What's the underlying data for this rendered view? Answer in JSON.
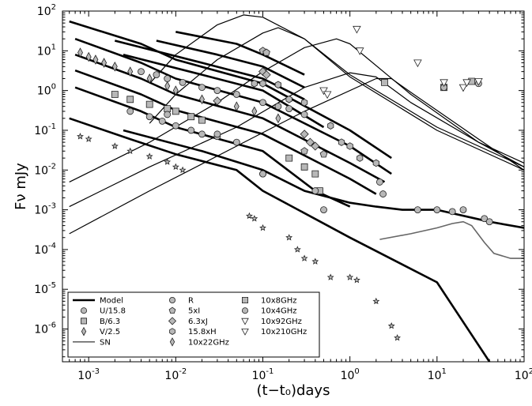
{
  "chart_data": {
    "type": "scatter",
    "title": "",
    "xlabel": "(t−t₀)days",
    "ylabel": "Fν mJy",
    "xscale": "log",
    "yscale": "log",
    "xlim": [
      0.0005,
      100
    ],
    "ylim": [
      1.5e-07,
      100
    ],
    "grid": false,
    "legend_position": "lower-left",
    "x_ticks": [
      {
        "value": 0.001,
        "base": "10",
        "exp": "-3"
      },
      {
        "value": 0.01,
        "base": "10",
        "exp": "-2"
      },
      {
        "value": 0.1,
        "base": "10",
        "exp": "-1"
      },
      {
        "value": 1,
        "base": "10",
        "exp": "0"
      },
      {
        "value": 10,
        "base": "10",
        "exp": "1"
      },
      {
        "value": 100,
        "base": "10",
        "exp": "2"
      }
    ],
    "y_ticks": [
      {
        "value": 1e-06,
        "base": "10",
        "exp": "-6"
      },
      {
        "value": 1e-05,
        "base": "10",
        "exp": "-5"
      },
      {
        "value": 0.0001,
        "base": "10",
        "exp": "-4"
      },
      {
        "value": 0.001,
        "base": "10",
        "exp": "-3"
      },
      {
        "value": 0.01,
        "base": "10",
        "exp": "-2"
      },
      {
        "value": 0.1,
        "base": "10",
        "exp": "-1"
      },
      {
        "value": 1,
        "base": "10",
        "exp": "0"
      },
      {
        "value": 10,
        "base": "10",
        "exp": "1"
      },
      {
        "value": 100,
        "base": "10",
        "exp": "2"
      }
    ],
    "legend": [
      {
        "label": "Model",
        "marker": "line-thick"
      },
      {
        "label": "U/15.8",
        "marker": "circle"
      },
      {
        "label": "B/6.3",
        "marker": "square"
      },
      {
        "label": "V/2.5",
        "marker": "thin-diamond"
      },
      {
        "label": "SN",
        "marker": "line-gray"
      },
      {
        "label": "R",
        "marker": "circle"
      },
      {
        "label": "5xI",
        "marker": "pentagon"
      },
      {
        "label": "6.3xJ",
        "marker": "diamond"
      },
      {
        "label": "15.8xH",
        "marker": "hexagon"
      },
      {
        "label": "10x22GHz",
        "marker": "thin-diamond"
      },
      {
        "label": "10x8GHz",
        "marker": "square"
      },
      {
        "label": "10x4GHz",
        "marker": "circle"
      },
      {
        "label": "10x92GHz",
        "marker": "triangle-down"
      },
      {
        "label": "10x210GHz",
        "marker": "triangle-down"
      }
    ],
    "model_curves_thick": [
      {
        "points": [
          [
            0.0006,
            55
          ],
          [
            0.004,
            15
          ],
          [
            0.01,
            6
          ],
          [
            0.1,
            1.5
          ],
          [
            1,
            0.1
          ],
          [
            3,
            0.02
          ]
        ]
      },
      {
        "points": [
          [
            0.0007,
            20
          ],
          [
            0.004,
            5
          ],
          [
            0.01,
            2
          ],
          [
            0.1,
            0.5
          ],
          [
            1,
            0.04
          ],
          [
            3,
            0.008
          ]
        ]
      },
      {
        "points": [
          [
            0.0007,
            8
          ],
          [
            0.004,
            2
          ],
          [
            0.01,
            0.8
          ],
          [
            0.1,
            0.2
          ],
          [
            1,
            0.015
          ],
          [
            2.5,
            0.005
          ]
        ]
      },
      {
        "points": [
          [
            0.0007,
            3.2
          ],
          [
            0.004,
            0.8
          ],
          [
            0.01,
            0.32
          ],
          [
            0.1,
            0.08
          ],
          [
            1,
            0.006
          ],
          [
            2,
            0.0025
          ]
        ]
      },
      {
        "points": [
          [
            0.0007,
            1.2
          ],
          [
            0.004,
            0.3
          ],
          [
            0.01,
            0.12
          ],
          [
            0.1,
            0.03
          ],
          [
            0.4,
            0.003
          ],
          [
            1,
            0.0012
          ]
        ]
      },
      {
        "points": [
          [
            0.0006,
            0.2
          ],
          [
            0.003,
            0.06
          ],
          [
            0.01,
            0.025
          ],
          [
            0.05,
            0.01
          ],
          [
            0.1,
            0.003
          ],
          [
            1,
            0.0002
          ],
          [
            10,
            1.5e-05
          ],
          [
            40,
            1.5e-07
          ]
        ]
      },
      {
        "points": [
          [
            0.0025,
            8
          ],
          [
            0.02,
            2.5
          ],
          [
            0.1,
            1
          ],
          [
            0.5,
            0.12
          ]
        ]
      },
      {
        "points": [
          [
            0.002,
            18
          ],
          [
            0.02,
            5
          ],
          [
            0.1,
            2
          ],
          [
            0.3,
            0.6
          ]
        ]
      },
      {
        "points": [
          [
            0.006,
            18
          ],
          [
            0.03,
            8
          ],
          [
            0.1,
            4
          ],
          [
            0.3,
            1.2
          ]
        ]
      },
      {
        "points": [
          [
            0.01,
            30
          ],
          [
            0.05,
            15
          ],
          [
            0.1,
            8
          ],
          [
            0.3,
            2.5
          ]
        ]
      },
      {
        "points": [
          [
            0.0025,
            0.1
          ],
          [
            0.02,
            0.03
          ],
          [
            0.1,
            0.01
          ],
          [
            0.3,
            0.003
          ],
          [
            1,
            0.0015
          ],
          [
            2,
            0.0012
          ],
          [
            4,
            0.001
          ],
          [
            10,
            0.001
          ],
          [
            40,
            0.0005
          ],
          [
            100,
            0.00035
          ]
        ]
      }
    ],
    "model_curves_thin": [
      {
        "points": [
          [
            0.005,
            1.5
          ],
          [
            0.01,
            8
          ],
          [
            0.03,
            45
          ],
          [
            0.06,
            80
          ],
          [
            0.1,
            70
          ],
          [
            0.3,
            20
          ],
          [
            1,
            2.5
          ],
          [
            10,
            0.12
          ],
          [
            100,
            0.012
          ]
        ]
      },
      {
        "points": [
          [
            0.005,
            0.15
          ],
          [
            0.01,
            0.8
          ],
          [
            0.03,
            6
          ],
          [
            0.1,
            28
          ],
          [
            0.15,
            38
          ],
          [
            0.3,
            20
          ],
          [
            1,
            2.2
          ],
          [
            10,
            0.1
          ],
          [
            100,
            0.01
          ]
        ]
      },
      {
        "points": [
          [
            0.0006,
            0.005
          ],
          [
            0.005,
            0.05
          ],
          [
            0.03,
            0.5
          ],
          [
            0.1,
            3
          ],
          [
            0.3,
            12
          ],
          [
            0.7,
            20
          ],
          [
            1,
            15
          ],
          [
            5,
            0.8
          ],
          [
            30,
            0.05
          ],
          [
            100,
            0.015
          ]
        ]
      },
      {
        "points": [
          [
            0.0006,
            0.0012
          ],
          [
            0.005,
            0.012
          ],
          [
            0.05,
            0.12
          ],
          [
            0.3,
            1.2
          ],
          [
            1,
            2.8
          ],
          [
            2,
            2.2
          ],
          [
            5,
            0.5
          ],
          [
            30,
            0.05
          ],
          [
            100,
            0.012
          ]
        ]
      },
      {
        "points": [
          [
            0.0006,
            0.00025
          ],
          [
            0.005,
            0.003
          ],
          [
            0.05,
            0.04
          ],
          [
            0.3,
            0.3
          ],
          [
            2,
            2
          ],
          [
            3,
            2
          ],
          [
            5,
            0.9
          ],
          [
            30,
            0.06
          ],
          [
            100,
            0.01
          ]
        ]
      }
    ],
    "sn_curve": {
      "points": [
        [
          2.2,
          0.00018
        ],
        [
          5,
          0.00025
        ],
        [
          10,
          0.00035
        ],
        [
          15,
          0.00045
        ],
        [
          20,
          0.0005
        ],
        [
          25,
          0.0004
        ],
        [
          35,
          0.00015
        ],
        [
          45,
          8e-05
        ],
        [
          70,
          6e-05
        ],
        [
          100,
          6e-05
        ]
      ]
    },
    "series": [
      {
        "marker": "thin-diamond",
        "points": [
          [
            0.0008,
            9
          ],
          [
            0.001,
            7
          ],
          [
            0.0012,
            6
          ],
          [
            0.0015,
            5
          ],
          [
            0.002,
            4
          ],
          [
            0.003,
            3
          ],
          [
            0.005,
            2
          ],
          [
            0.008,
            1.3
          ],
          [
            0.01,
            1
          ],
          [
            0.02,
            0.6
          ],
          [
            0.05,
            0.4
          ],
          [
            0.08,
            0.3
          ],
          [
            0.15,
            0.2
          ]
        ]
      },
      {
        "marker": "circle",
        "points": [
          [
            0.004,
            3
          ],
          [
            0.006,
            2.5
          ],
          [
            0.008,
            2
          ],
          [
            0.012,
            1.6
          ],
          [
            0.02,
            1.2
          ],
          [
            0.03,
            1
          ],
          [
            0.05,
            0.8
          ],
          [
            0.1,
            0.5
          ],
          [
            0.15,
            0.4
          ],
          [
            0.2,
            0.35
          ],
          [
            0.3,
            0.25
          ]
        ]
      },
      {
        "marker": "square",
        "points": [
          [
            0.002,
            0.8
          ],
          [
            0.003,
            0.6
          ],
          [
            0.005,
            0.45
          ],
          [
            0.008,
            0.35
          ],
          [
            0.01,
            0.3
          ],
          [
            0.015,
            0.22
          ],
          [
            0.02,
            0.18
          ],
          [
            0.2,
            0.02
          ],
          [
            0.3,
            0.012
          ],
          [
            0.4,
            0.008
          ],
          [
            0.45,
            0.003
          ]
        ]
      },
      {
        "marker": "circle",
        "points": [
          [
            0.003,
            0.3
          ],
          [
            0.005,
            0.22
          ],
          [
            0.007,
            0.17
          ],
          [
            0.01,
            0.13
          ],
          [
            0.015,
            0.1
          ],
          [
            0.02,
            0.08
          ],
          [
            0.03,
            0.07
          ],
          [
            0.1,
            0.008
          ],
          [
            0.4,
            0.003
          ],
          [
            0.5,
            0.001
          ],
          [
            2.2,
            0.005
          ],
          [
            2.4,
            0.0025
          ],
          [
            6,
            0.001
          ],
          [
            10,
            0.001
          ],
          [
            15,
            0.0009
          ],
          [
            20,
            0.001
          ],
          [
            35,
            0.0006
          ],
          [
            40,
            0.0005
          ]
        ]
      },
      {
        "marker": "hexagon",
        "points": [
          [
            0.08,
            1.5
          ],
          [
            0.1,
            1.5
          ],
          [
            0.15,
            1.4
          ],
          [
            0.2,
            0.6
          ],
          [
            0.3,
            0.5
          ],
          [
            0.6,
            0.13
          ],
          [
            0.8,
            0.05
          ],
          [
            1,
            0.04
          ],
          [
            1.3,
            0.02
          ],
          [
            2,
            0.015
          ]
        ]
      },
      {
        "marker": "diamond",
        "points": [
          [
            0.03,
            0.55
          ],
          [
            0.1,
            3
          ],
          [
            0.11,
            2.5
          ],
          [
            0.3,
            0.08
          ],
          [
            0.35,
            0.05
          ],
          [
            0.4,
            0.04
          ]
        ]
      },
      {
        "marker": "pentagon",
        "points": [
          [
            0.1,
            10
          ],
          [
            0.11,
            9
          ],
          [
            0.3,
            0.03
          ],
          [
            0.5,
            0.025
          ]
        ]
      },
      {
        "marker": "star",
        "points": [
          [
            0.0008,
            0.07
          ],
          [
            0.001,
            0.06
          ],
          [
            0.002,
            0.04
          ],
          [
            0.003,
            0.03
          ],
          [
            0.005,
            0.022
          ],
          [
            0.008,
            0.016
          ],
          [
            0.01,
            0.012
          ],
          [
            0.012,
            0.01
          ],
          [
            0.07,
            0.0007
          ],
          [
            0.08,
            0.0006
          ],
          [
            0.1,
            0.00035
          ],
          [
            0.2,
            0.0002
          ],
          [
            0.25,
            0.0001
          ],
          [
            0.3,
            6e-05
          ],
          [
            0.4,
            5e-05
          ],
          [
            0.6,
            2e-05
          ],
          [
            1,
            2e-05
          ],
          [
            1.2,
            1.7e-05
          ],
          [
            2,
            5e-06
          ],
          [
            3,
            1.2e-06
          ],
          [
            3.5,
            6e-07
          ]
        ]
      },
      {
        "marker": "circle",
        "points": [
          [
            0.008,
            0.25
          ],
          [
            0.03,
            0.08
          ],
          [
            0.05,
            0.05
          ],
          [
            0.1,
            0.008
          ]
        ]
      },
      {
        "marker": "square",
        "points": [
          [
            2.5,
            1.6
          ],
          [
            12,
            1.2
          ],
          [
            25,
            1.7
          ]
        ]
      },
      {
        "marker": "circle",
        "points": [
          [
            12,
            1.2
          ],
          [
            30,
            1.5
          ]
        ]
      },
      {
        "marker": "triangle-down",
        "points": [
          [
            0.5,
            1
          ],
          [
            0.55,
            0.8
          ],
          [
            1.2,
            35
          ],
          [
            1.3,
            10
          ],
          [
            6,
            5
          ],
          [
            12,
            1.6
          ],
          [
            20,
            1.2
          ],
          [
            22,
            1.6
          ],
          [
            30,
            1.7
          ]
        ]
      }
    ]
  }
}
